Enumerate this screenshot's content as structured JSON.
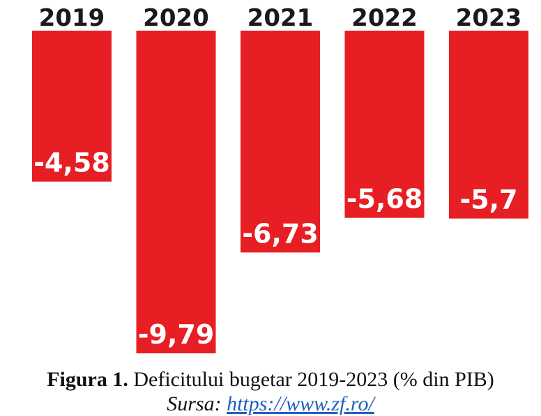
{
  "chart_data": {
    "type": "bar",
    "categories": [
      "2019",
      "2020",
      "2021",
      "2022",
      "2023"
    ],
    "values": [
      -4.58,
      -9.79,
      -6.73,
      -5.68,
      -5.7
    ],
    "value_labels": [
      "-4,58",
      "-9,79",
      "-6,73",
      "-5,68",
      "-5,7"
    ],
    "title": "",
    "xlabel": "",
    "ylabel": "",
    "ylim": [
      -10.2,
      0
    ],
    "grid": false,
    "bar_color": "#e81e25",
    "label_color": "#ffffff"
  },
  "caption": {
    "figure_label": "Figura 1.",
    "text": " Deficitului bugetar 2019-2023 (% din PIB)",
    "source_prefix": "Sursa: ",
    "source_link": "https://www.zf.ro/"
  }
}
